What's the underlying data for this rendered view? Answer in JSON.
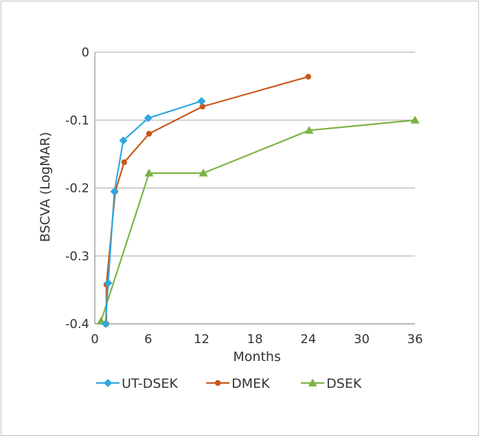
{
  "chart_data": {
    "type": "line",
    "title": "",
    "xlabel": "Months",
    "ylabel": "BSCVA (LogMAR)",
    "xlim": [
      0,
      36
    ],
    "ylim": [
      -0.4,
      0
    ],
    "xticks": [
      0,
      6,
      12,
      18,
      24,
      30,
      36
    ],
    "xtick_labels": [
      "0",
      "6",
      "12",
      "18",
      "24",
      "30",
      "36"
    ],
    "yticks": [
      0,
      -0.1,
      -0.2,
      -0.3,
      -0.4
    ],
    "ytick_labels": [
      "0",
      "-0.1",
      "-0.2",
      "-0.3",
      "-0.4"
    ],
    "grid": "horizontal",
    "legend_position": "bottom",
    "series": [
      {
        "name": "UT-DSEK",
        "color": "#2ea8e0",
        "marker": "diamond",
        "points": [
          [
            1.2,
            -0.4
          ],
          [
            1.5,
            -0.34
          ],
          [
            2.2,
            -0.205
          ],
          [
            3.2,
            -0.13
          ],
          [
            6,
            -0.097
          ],
          [
            12,
            -0.072
          ]
        ]
      },
      {
        "name": "DMEK",
        "color": "#c8571b",
        "marker": "circle",
        "points": [
          [
            1.3,
            -0.4
          ],
          [
            1.3,
            -0.342
          ],
          [
            2.3,
            -0.205
          ],
          [
            3.3,
            -0.162
          ],
          [
            6.1,
            -0.12
          ],
          [
            12.1,
            -0.08
          ],
          [
            24,
            -0.036
          ]
        ]
      },
      {
        "name": "DSEK",
        "color": "#7cb342",
        "marker": "triangle",
        "points": [
          [
            0.7,
            -0.396
          ],
          [
            6.1,
            -0.178
          ],
          [
            12.2,
            -0.178
          ],
          [
            24.1,
            -0.115
          ],
          [
            36,
            -0.1
          ]
        ]
      }
    ]
  }
}
